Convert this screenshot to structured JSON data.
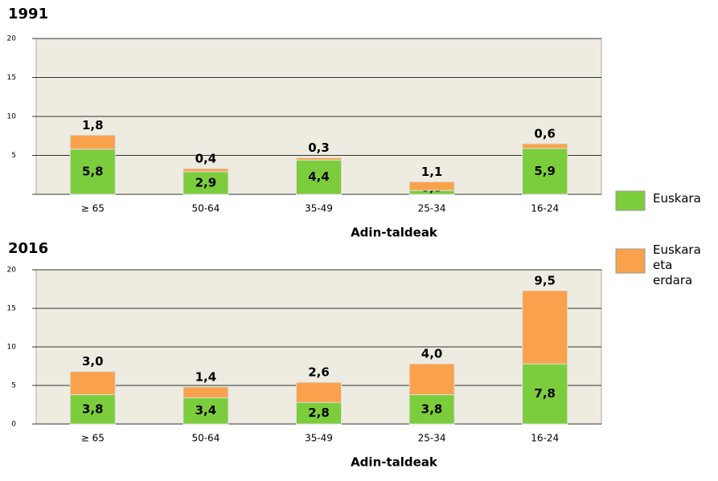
{
  "legend": [
    {
      "name": "Euskara",
      "color": "#7ccd3c"
    },
    {
      "name": "Euskara eta erdara",
      "color": "#f9a24b"
    }
  ],
  "chart_data": [
    {
      "type": "bar",
      "stacked": true,
      "title": "1991",
      "x_label": "Adin-taldeak",
      "categories": [
        "≥ 65",
        "50-64",
        "35-49",
        "25-34",
        "16-24"
      ],
      "series": [
        {
          "values": [
            5.8,
            2.9,
            4.4,
            0.5,
            5.9
          ],
          "value_labels": [
            "5,8",
            "2,9",
            "4,4",
            "0,5",
            "5,9"
          ]
        },
        {
          "values": [
            1.8,
            0.4,
            0.3,
            1.1,
            0.6
          ],
          "value_labels": [
            "1,8",
            "0,4",
            "0,3",
            "1,1",
            "0,6"
          ]
        }
      ],
      "ylim": [
        0,
        20
      ],
      "yticks": [
        5,
        10,
        15,
        20
      ],
      "grid": true
    },
    {
      "type": "bar",
      "stacked": true,
      "title": "2016",
      "x_label": "Adin-taldeak",
      "categories": [
        "≥ 65",
        "50-64",
        "35-49",
        "25-34",
        "16-24"
      ],
      "series": [
        {
          "values": [
            3.8,
            3.4,
            2.8,
            3.8,
            7.8
          ],
          "value_labels": [
            "3,8",
            "3,4",
            "2,8",
            "3,8",
            "7,8"
          ]
        },
        {
          "values": [
            3.0,
            1.4,
            2.6,
            4.0,
            9.5
          ],
          "value_labels": [
            "3,0",
            "1,4",
            "2,6",
            "4,0",
            "9,5"
          ]
        }
      ],
      "ylim": [
        0,
        20
      ],
      "yticks": [
        0,
        5,
        10,
        15,
        20
      ],
      "grid": true
    }
  ]
}
